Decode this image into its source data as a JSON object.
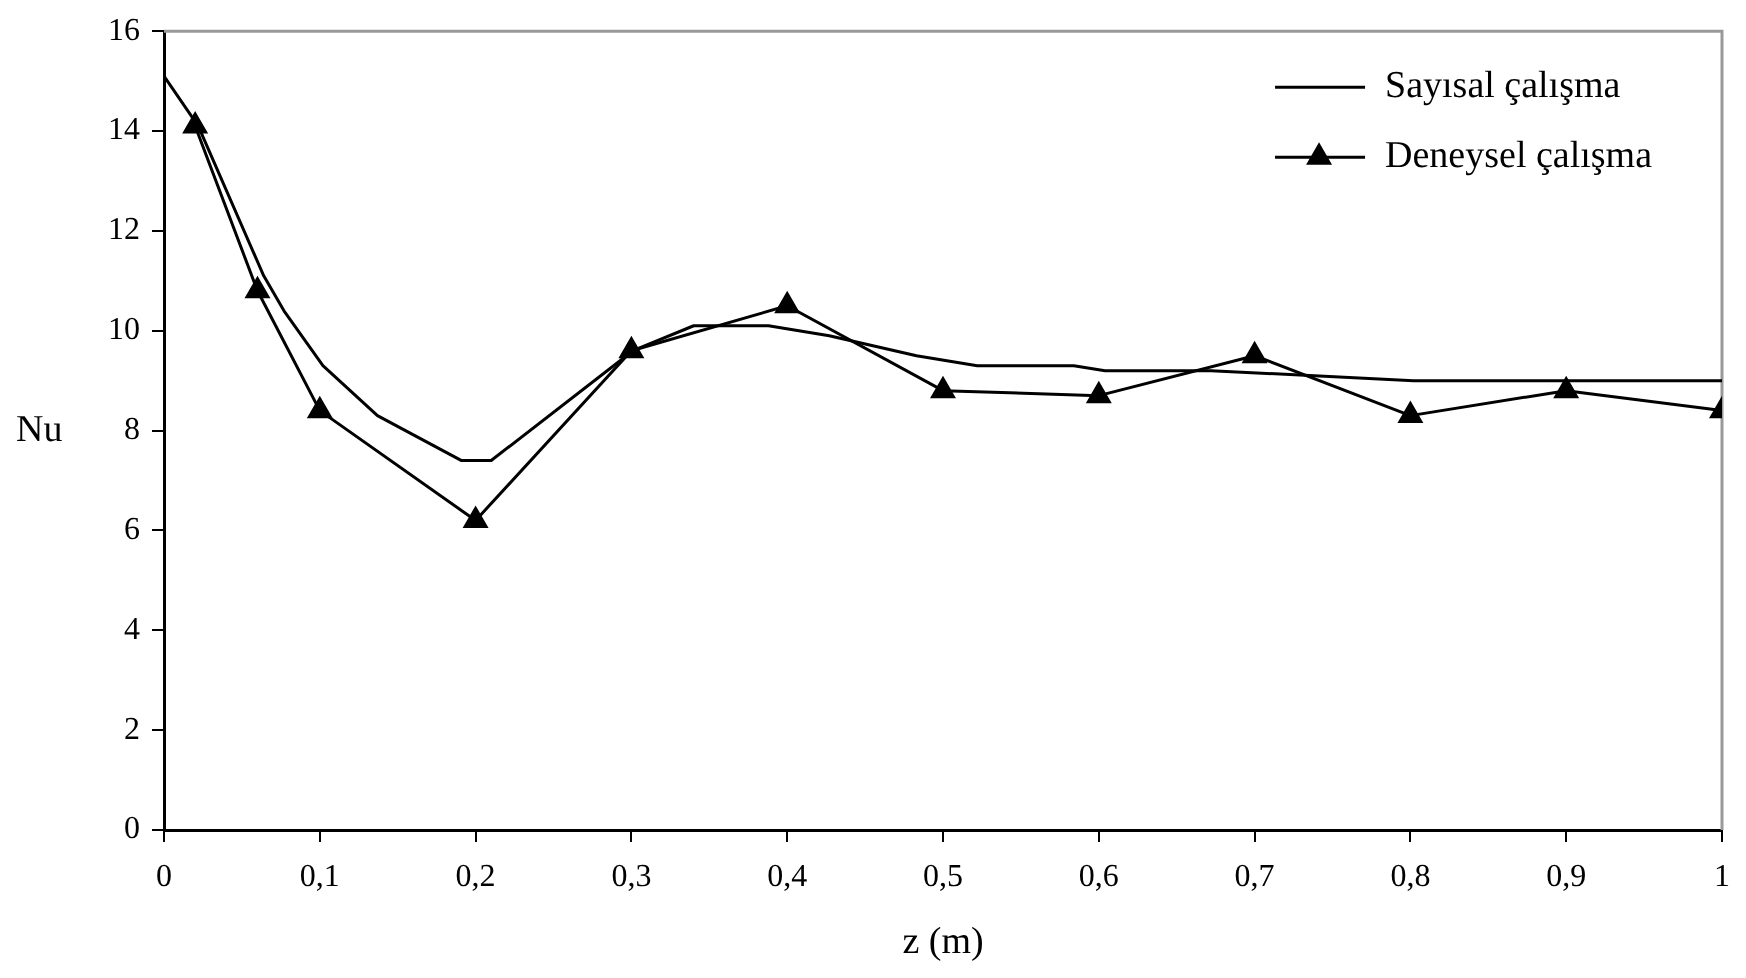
{
  "chart_data": {
    "type": "line",
    "xlabel": "z (m)",
    "ylabel": "Nu",
    "xlim": [
      0,
      1
    ],
    "xticks": [
      0,
      {
        "value": 0.1,
        "label": "0,1"
      },
      {
        "value": 0.2,
        "label": "0,2"
      },
      {
        "value": 0.3,
        "label": "0,3"
      },
      {
        "value": 0.4,
        "label": "0,4"
      },
      {
        "value": 0.5,
        "label": "0,5"
      },
      {
        "value": 0.6,
        "label": "0,6"
      },
      {
        "value": 0.7,
        "label": "0,7"
      },
      {
        "value": 0.8,
        "label": "0,8"
      },
      {
        "value": 0.9,
        "label": "0,9"
      },
      1
    ],
    "ylim": [
      0,
      16
    ],
    "yticks": [
      0,
      2,
      4,
      6,
      8,
      10,
      12,
      14,
      16
    ],
    "grid": false,
    "legend": "top right",
    "series": [
      {
        "name": "Sayısal çalışma",
        "color": "#000000",
        "marker": "none",
        "x": [
          0,
          0.022,
          0.064,
          0.077,
          0.102,
          0.137,
          0.191,
          0.21,
          0.301,
          0.34,
          0.37,
          0.388,
          0.427,
          0.483,
          0.522,
          0.584,
          0.604,
          0.672,
          0.802,
          1
        ],
        "values": [
          15.1,
          14.1,
          11.1,
          10.4,
          9.3,
          8.3,
          7.4,
          7.4,
          9.6,
          10.1,
          10.1,
          10.1,
          9.9,
          9.5,
          9.3,
          9.3,
          9.2,
          9.2,
          9,
          9
        ]
      },
      {
        "name": "Deneysel çalışma",
        "color": "#000000",
        "marker": "triangle",
        "x": [
          0.02,
          0.06,
          0.1,
          0.2,
          0.3,
          0.4,
          0.5,
          0.6,
          0.7,
          0.8,
          0.9,
          1
        ],
        "values": [
          14.1,
          10.8,
          8.4,
          6.2,
          9.6,
          10.5,
          8.8,
          8.7,
          9.5,
          8.3,
          8.8,
          8.4
        ]
      }
    ]
  }
}
